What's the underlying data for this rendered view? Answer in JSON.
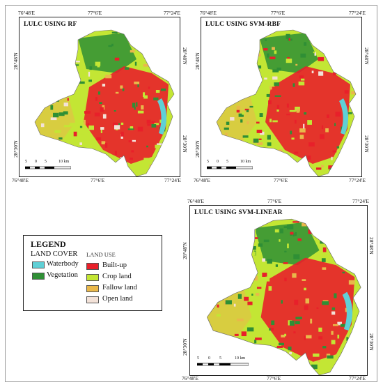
{
  "colors": {
    "built_up": "#e8202a",
    "crop_land": "#c3e634",
    "fallow_land": "#e9b84a",
    "open_land": "#f3e2d8",
    "waterbody": "#5fd0d6",
    "vegetation": "#2f8f35"
  },
  "maps": [
    {
      "title": "LULC USING RF",
      "top_ticks": [
        "76°48'E",
        "77°6'E",
        "77°24'E"
      ],
      "bottom_ticks": [
        "76°48'E",
        "77°6'E",
        "77°24'E"
      ],
      "left_ticks": [
        "28°48'N",
        "28°30'N"
      ],
      "right_ticks": [
        "28°48'N",
        "28°30'N"
      ],
      "scale_labels": [
        "5",
        "0",
        "5",
        "10 km"
      ]
    },
    {
      "title": "LULC USING SVM-RBF",
      "top_ticks": [
        "76°48'E",
        "77°6'E",
        "77°24'E"
      ],
      "bottom_ticks": [
        "76°48'E",
        "77°6'E",
        "77°24'E"
      ],
      "left_ticks": [
        "28°48'N",
        "28°30'N"
      ],
      "right_ticks": [
        "28°48'N",
        "28°30'N"
      ],
      "scale_labels": [
        "5",
        "0",
        "5",
        "10 km"
      ]
    },
    {
      "title": "LULC USING SVM-LINEAR",
      "top_ticks": [
        "76°48'E",
        "77°6'E",
        "77°24'E"
      ],
      "bottom_ticks": [
        "76°48'E",
        "77°6'E",
        "77°24'E"
      ],
      "left_ticks": [
        "28°48'N",
        "28°30'N"
      ],
      "right_ticks": [
        "28°48'N",
        "28°30'N"
      ],
      "scale_labels": [
        "5",
        "0",
        "5",
        "10 km"
      ]
    }
  ],
  "legend": {
    "title": "LEGEND",
    "land_cover_heading": "LAND COVER",
    "land_use_heading": "LAND USE",
    "land_cover": [
      {
        "label": "Waterbody",
        "color_key": "waterbody"
      },
      {
        "label": "Vegetation",
        "color_key": "vegetation"
      }
    ],
    "land_use": [
      {
        "label": "Built-up",
        "color_key": "built_up"
      },
      {
        "label": "Crop land",
        "color_key": "crop_land"
      },
      {
        "label": "Fallow land",
        "color_key": "fallow_land"
      },
      {
        "label": "Open land",
        "color_key": "open_land"
      }
    ]
  }
}
